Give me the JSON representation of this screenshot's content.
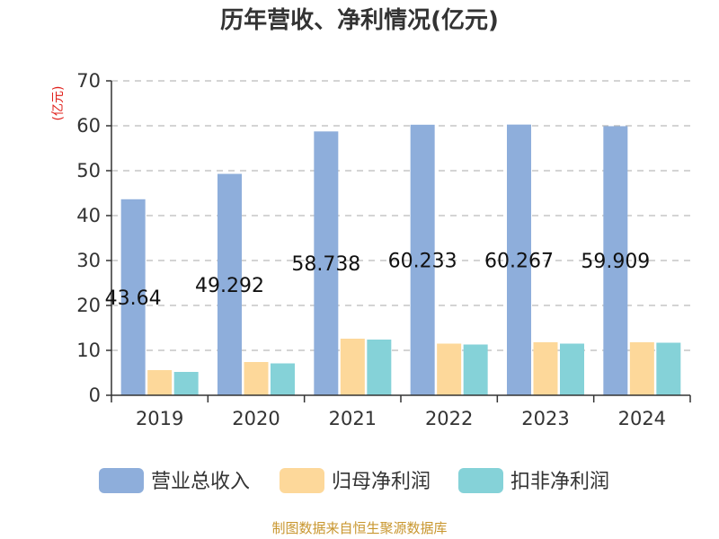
{
  "chart_data": {
    "type": "bar",
    "title": "历年营收、净利情况(亿元)",
    "ylabel": "(亿元)",
    "xlabel": "",
    "categories": [
      "2019",
      "2020",
      "2021",
      "2022",
      "2023",
      "2024"
    ],
    "ylim": [
      0,
      70
    ],
    "yticks": [
      "0",
      "10",
      "20",
      "30",
      "40",
      "50",
      "60",
      "70"
    ],
    "grid": true,
    "legend_position": "bottom",
    "series": [
      {
        "name": "营业总收入",
        "color": "#8eaedb",
        "values": [
          43.64,
          49.292,
          58.738,
          60.233,
          60.267,
          59.909
        ],
        "data_labels": [
          "43.64",
          "49.292",
          "58.738",
          "60.233",
          "60.267",
          "59.909"
        ]
      },
      {
        "name": "归母净利润",
        "color": "#fdd89a",
        "values": [
          5.6,
          7.4,
          12.6,
          11.5,
          11.8,
          11.8
        ]
      },
      {
        "name": "扣非净利润",
        "color": "#85d2d8",
        "values": [
          5.2,
          7.1,
          12.4,
          11.3,
          11.5,
          11.7
        ]
      }
    ]
  },
  "source": "制图数据来自恒生聚源数据库",
  "colors": {
    "axis": "#333333",
    "grid": "#bbbbbb",
    "ylabel": "#e0201b",
    "source": "#c8962e"
  }
}
